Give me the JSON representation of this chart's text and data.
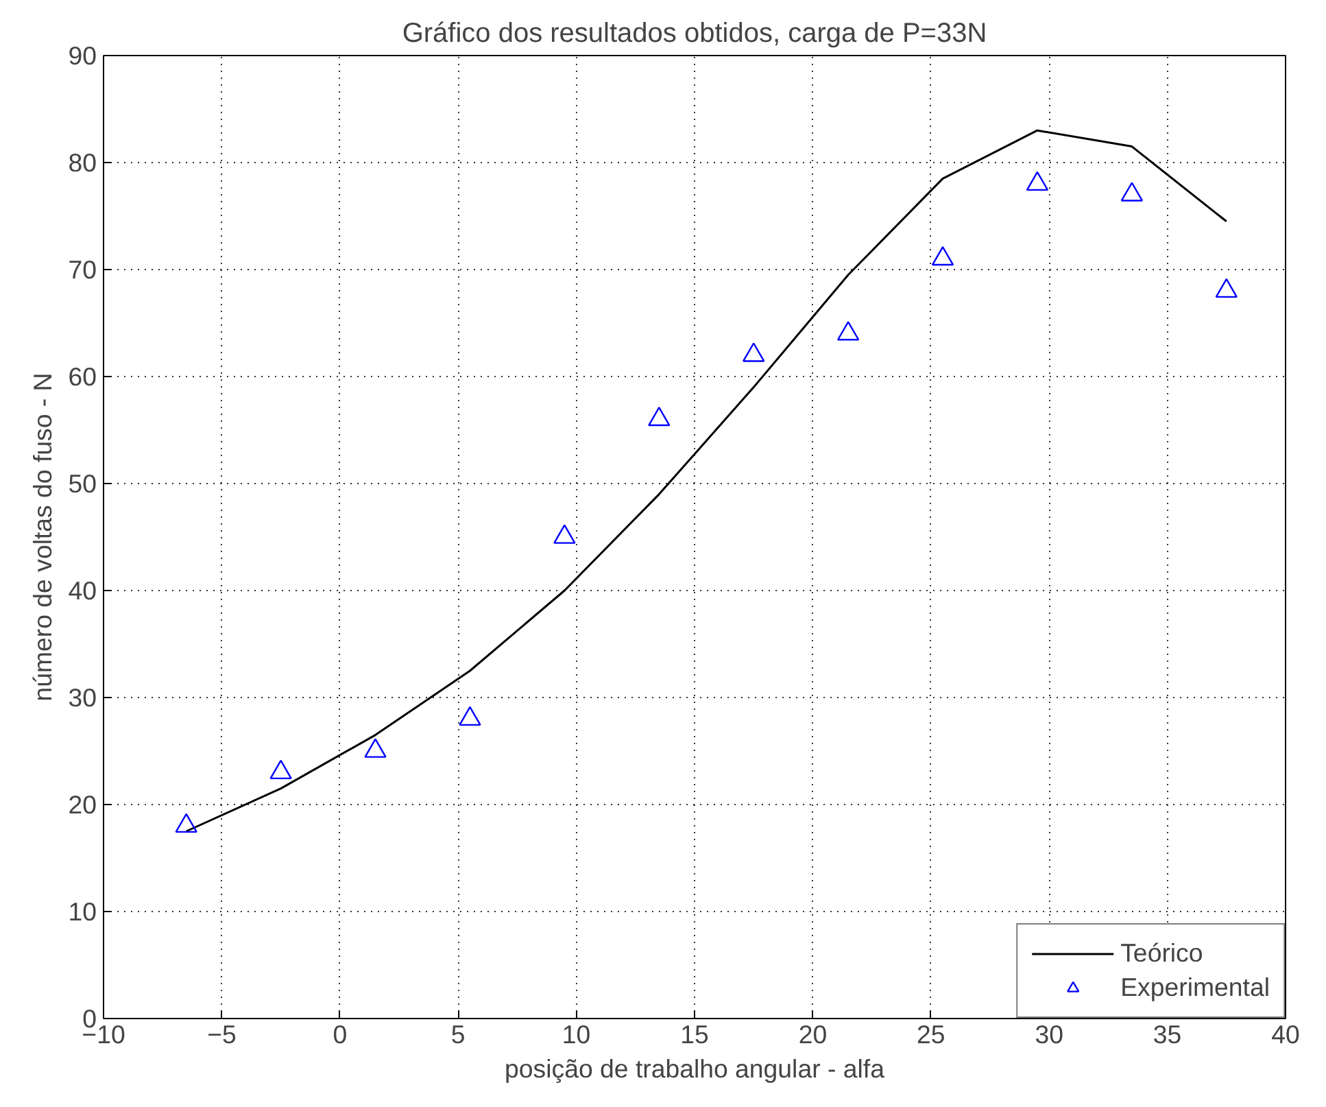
{
  "chart_data": {
    "type": "line",
    "title": "Gráfico dos resultados obtidos, carga de P=33N",
    "xlabel": "posição de trabalho angular - alfa",
    "ylabel": "número de voltas do fuso - N",
    "x": [
      -6.5,
      -2.5,
      1.5,
      5.5,
      9.5,
      13.5,
      17.5,
      21.5,
      25.5,
      29.5,
      33.5,
      37.5
    ],
    "series": [
      {
        "name": "Teórico",
        "color": "#000000",
        "marker": "none",
        "line_style": "solid",
        "values": [
          17.5,
          21.5,
          26.5,
          32.5,
          40,
          49,
          59,
          69.5,
          78.5,
          83,
          81.5,
          74.5
        ]
      },
      {
        "name": "Experimental",
        "type": "scatter",
        "color": "#0000ff",
        "marker": "triangle",
        "values": [
          18,
          23,
          25,
          28,
          45,
          56,
          62,
          64,
          71,
          78,
          77,
          68
        ]
      }
    ],
    "xlim": [
      -10,
      40
    ],
    "xticks": [
      -10,
      -5,
      0,
      5,
      10,
      15,
      20,
      25,
      30,
      35,
      40
    ],
    "ylim": [
      0,
      90
    ],
    "yticks": [
      0,
      10,
      20,
      30,
      40,
      50,
      60,
      70,
      80,
      90
    ],
    "grid": true,
    "legend": "bottom right"
  }
}
